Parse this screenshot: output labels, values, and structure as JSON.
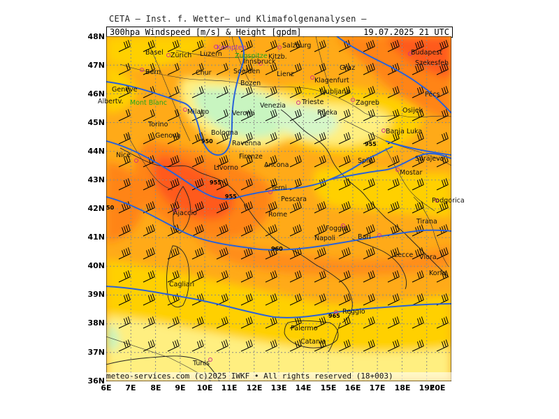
{
  "header": {
    "title": "CETA – Inst. f. Wetter– und Klimafolgenanalysen –",
    "product": "300hpa Windspeed [m/s] & Height [gpdm]",
    "valid": "19.07.2025 21 UTC"
  },
  "footer": "meteo-services.com (c)2025 IWKF • All rights reserved (18+003)",
  "axes": {
    "lat_labels": [
      "48N",
      "47N",
      "46N",
      "45N",
      "44N",
      "43N",
      "42N",
      "41N",
      "40N",
      "39N",
      "38N",
      "37N",
      "36N"
    ],
    "lon_labels": [
      "6E",
      "7E",
      "8E",
      "9E",
      "10E",
      "11E",
      "12E",
      "13E",
      "14E",
      "15E",
      "16E",
      "17E",
      "18E",
      "19E",
      "20E"
    ]
  },
  "colors": {
    "wind_very_low": "#c8f5c0",
    "wind_low": "#ffef80",
    "wind_mid": "#ffd000",
    "wind_high": "#ffaa18",
    "wind_very_high": "#ff8418",
    "wind_max": "#ff5a1c",
    "height_contour": "#2a62d8"
  },
  "height_contours": [
    {
      "label": "950"
    },
    {
      "label": "955"
    },
    {
      "label": "955"
    },
    {
      "label": "960"
    },
    {
      "label": "965"
    },
    {
      "label": "50"
    },
    {
      "label": "955"
    }
  ],
  "cities": [
    {
      "name": "Kempten",
      "class": "purple"
    },
    {
      "name": "Salzburg",
      "class": ""
    },
    {
      "name": "Budapest",
      "class": ""
    },
    {
      "name": "Zürich",
      "class": ""
    },
    {
      "name": "Basel",
      "class": ""
    },
    {
      "name": "Luzern",
      "class": ""
    },
    {
      "name": "Zugspitze",
      "class": "green"
    },
    {
      "name": "Kitzb.",
      "class": ""
    },
    {
      "name": "Innsbruck",
      "class": ""
    },
    {
      "name": "Graz",
      "class": ""
    },
    {
      "name": "Szekesfeh",
      "class": ""
    },
    {
      "name": "Bern",
      "class": ""
    },
    {
      "name": "Chur",
      "class": ""
    },
    {
      "name": "Soelden",
      "class": ""
    },
    {
      "name": "Lienz",
      "class": ""
    },
    {
      "name": "Klagenfurt",
      "class": ""
    },
    {
      "name": "Bozen",
      "class": ""
    },
    {
      "name": "Ljubljana",
      "class": ""
    },
    {
      "name": "Genève",
      "class": ""
    },
    {
      "name": "Pécs",
      "class": ""
    },
    {
      "name": "Albertv.",
      "class": ""
    },
    {
      "name": "Mont Blanc",
      "class": "green"
    },
    {
      "name": "Milano",
      "class": ""
    },
    {
      "name": "Verona",
      "class": ""
    },
    {
      "name": "Venezia",
      "class": ""
    },
    {
      "name": "Trieste",
      "class": ""
    },
    {
      "name": "Zagreb",
      "class": ""
    },
    {
      "name": "Rijeka",
      "class": ""
    },
    {
      "name": "Osijek",
      "class": ""
    },
    {
      "name": "Torino",
      "class": ""
    },
    {
      "name": "Genova",
      "class": ""
    },
    {
      "name": "Bologna",
      "class": ""
    },
    {
      "name": "Banja Luka",
      "class": ""
    },
    {
      "name": "Ravenna",
      "class": ""
    },
    {
      "name": "Split",
      "class": ""
    },
    {
      "name": "Sarajevo",
      "class": ""
    },
    {
      "name": "Nice",
      "class": ""
    },
    {
      "name": "Firenze",
      "class": ""
    },
    {
      "name": "Ancona",
      "class": ""
    },
    {
      "name": "Mostar",
      "class": ""
    },
    {
      "name": "Livorno",
      "class": ""
    },
    {
      "name": "Terni",
      "class": ""
    },
    {
      "name": "Podgorica",
      "class": ""
    },
    {
      "name": "Pescara",
      "class": ""
    },
    {
      "name": "Ajaccio",
      "class": ""
    },
    {
      "name": "Rome",
      "class": ""
    },
    {
      "name": "Tirana",
      "class": ""
    },
    {
      "name": "Foggia",
      "class": ""
    },
    {
      "name": "Napoli",
      "class": ""
    },
    {
      "name": "Bari",
      "class": ""
    },
    {
      "name": "Lecce",
      "class": ""
    },
    {
      "name": "Vlora",
      "class": ""
    },
    {
      "name": "Korfu",
      "class": ""
    },
    {
      "name": "Cagliari",
      "class": ""
    },
    {
      "name": "Reggio",
      "class": ""
    },
    {
      "name": "Palermo",
      "class": ""
    },
    {
      "name": "Catania",
      "class": ""
    },
    {
      "name": "Tunis",
      "class": ""
    }
  ]
}
